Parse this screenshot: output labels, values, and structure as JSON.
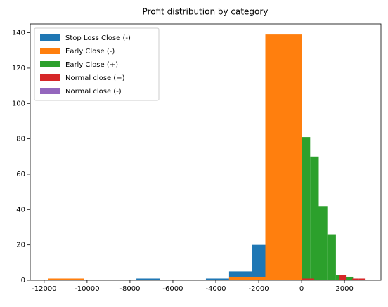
{
  "chart_data": {
    "type": "histogram",
    "title": "Profit distribution by category",
    "series": [
      {
        "name": "Stop Loss Close (-)",
        "color": "#1f77b4",
        "bins": [
          -7700,
          -6620,
          -5540,
          -4460,
          -3380,
          -2300,
          -1220
        ],
        "values": [
          1,
          0,
          0,
          1,
          5,
          20
        ]
      },
      {
        "name": "Early Close (-)",
        "color": "#ff7f0e",
        "bins": [
          -11830,
          -10140,
          -8450,
          -6760,
          -5070,
          -3380,
          -1690,
          0
        ],
        "values": [
          1,
          0,
          0,
          0,
          0,
          2,
          139
        ]
      },
      {
        "name": "Early Close (+)",
        "color": "#2ca02c",
        "bins": [
          0,
          400,
          800,
          1200,
          1600,
          2000,
          2400
        ],
        "values": [
          81,
          70,
          42,
          26,
          3,
          2
        ]
      },
      {
        "name": "Normal close (+)",
        "color": "#d62728",
        "bins": [
          0,
          295,
          590,
          885,
          1180,
          1475,
          1770,
          2065,
          2360,
          2655,
          2950
        ],
        "values": [
          1,
          1,
          0,
          0,
          0,
          0,
          3,
          0,
          1,
          1
        ]
      },
      {
        "name": "Normal close (-)",
        "color": "#9467bd",
        "bins": [],
        "values": []
      }
    ],
    "xlim": [
      -12650,
      3700
    ],
    "xticks": [
      -12000,
      -10000,
      -8000,
      -6000,
      -4000,
      -2000,
      0,
      2000
    ],
    "ylim": [
      0,
      145
    ],
    "yticks": [
      0,
      20,
      40,
      60,
      80,
      100,
      120,
      140
    ],
    "legend": "upper left"
  }
}
